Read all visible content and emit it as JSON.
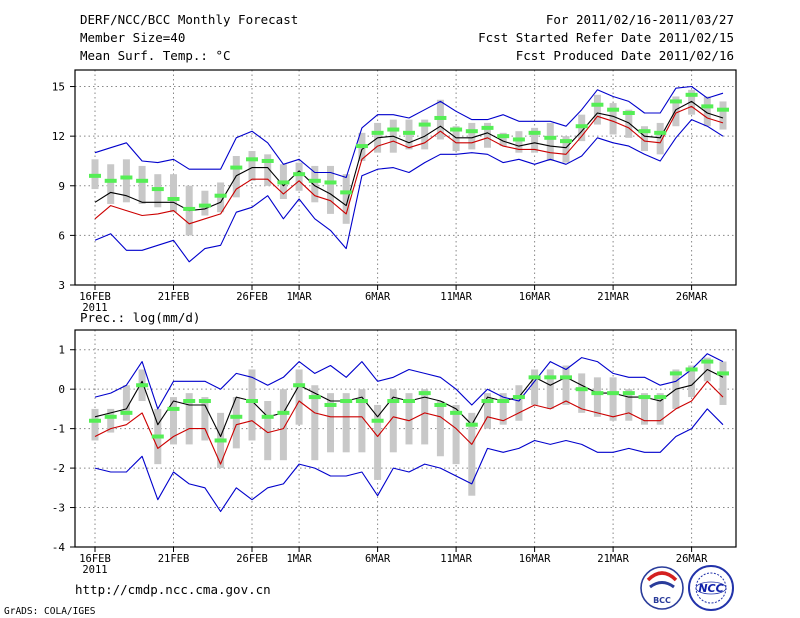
{
  "header": {
    "title": "DERF/NCC/BCC Monthly Forecast",
    "member_size": "Member Size=40",
    "variable": "Mean Surf. Temp.: °C",
    "period": "For 2011/02/16-2011/03/27",
    "start_date": "Fcst Started Refer Date 2011/02/15",
    "produced_date": "Fcst Produced Date 2011/02/16"
  },
  "footer": {
    "url": "http://cmdp.ncc.cma.gov.cn",
    "credit": "GrADS: COLA/IGES",
    "logo_bcc": "BCC",
    "logo_ncc": "NCC"
  },
  "colors": {
    "spread_line": "#0000cc",
    "ensemble_line": "#000000",
    "control_line": "#cc0000",
    "box": "#c8c8c8",
    "median": "#55ee55",
    "grid": "#888888"
  },
  "chart_data": [
    {
      "type": "line",
      "title": "Mean Surf. Temp.: °C",
      "xlabel": "",
      "ylabel": "",
      "ylim": [
        3,
        16
      ],
      "yticks": [
        3,
        6,
        9,
        12,
        15
      ],
      "ytick_labels": [
        "3",
        "6",
        "9",
        "12",
        "15"
      ],
      "grid": true,
      "xlim_days": [
        0,
        39
      ],
      "xticks": [
        {
          "day": 0,
          "label": "16FEB",
          "sublabel": "2011"
        },
        {
          "day": 5,
          "label": "21FEB"
        },
        {
          "day": 10,
          "label": "26FEB"
        },
        {
          "day": 13,
          "label": "1MAR"
        },
        {
          "day": 18,
          "label": "6MAR"
        },
        {
          "day": 23,
          "label": "11MAR"
        },
        {
          "day": 28,
          "label": "16MAR"
        },
        {
          "day": 33,
          "label": "21MAR"
        },
        {
          "day": 38,
          "label": "26MAR"
        }
      ],
      "series": [
        {
          "name": "max",
          "color": "#0000cc",
          "values": [
            11.0,
            11.3,
            11.6,
            10.5,
            10.4,
            10.6,
            10.0,
            10.0,
            10.0,
            11.9,
            12.3,
            11.6,
            10.3,
            10.6,
            9.8,
            9.8,
            9.5,
            12.5,
            13.3,
            13.3,
            13.1,
            13.6,
            14.1,
            13.5,
            13.0,
            13.0,
            13.3,
            12.9,
            12.9,
            12.9,
            12.6,
            13.6,
            14.8,
            14.4,
            14.1,
            13.4,
            13.4,
            14.9,
            15.0,
            14.3,
            14.6
          ]
        },
        {
          "name": "ensemble_mean",
          "color": "#000000",
          "values": [
            8.0,
            8.6,
            8.4,
            8.0,
            8.0,
            8.0,
            7.5,
            7.6,
            8.0,
            9.6,
            10.1,
            10.1,
            9.0,
            9.9,
            9.0,
            8.5,
            7.8,
            11.2,
            11.9,
            12.0,
            11.6,
            12.0,
            12.6,
            11.9,
            11.9,
            12.2,
            11.7,
            11.4,
            11.6,
            11.4,
            11.3,
            12.3,
            13.4,
            13.2,
            12.8,
            12.0,
            11.9,
            13.6,
            14.1,
            13.4,
            13.1
          ]
        },
        {
          "name": "control",
          "color": "#cc0000",
          "values": [
            7.0,
            7.8,
            7.5,
            7.2,
            7.3,
            7.5,
            6.7,
            7.0,
            7.3,
            8.8,
            9.4,
            9.4,
            8.5,
            9.3,
            8.4,
            8.1,
            7.3,
            10.6,
            11.4,
            11.7,
            11.3,
            11.6,
            12.3,
            11.6,
            11.6,
            11.9,
            11.4,
            11.2,
            11.2,
            11.0,
            10.9,
            12.0,
            13.2,
            12.9,
            12.5,
            11.7,
            11.6,
            13.4,
            13.8,
            13.1,
            12.8
          ]
        },
        {
          "name": "min",
          "color": "#0000cc",
          "values": [
            5.7,
            6.1,
            5.1,
            5.1,
            5.4,
            5.7,
            4.4,
            5.2,
            5.4,
            7.4,
            7.7,
            8.4,
            7.0,
            8.2,
            7.0,
            6.3,
            5.2,
            9.6,
            10.0,
            10.1,
            9.8,
            10.4,
            10.9,
            10.9,
            11.0,
            10.9,
            10.4,
            10.6,
            10.3,
            10.6,
            10.3,
            10.8,
            11.9,
            11.6,
            11.4,
            10.9,
            10.5,
            11.9,
            13.0,
            12.6,
            12.0
          ]
        }
      ],
      "boxes": [
        {
          "low": 8.8,
          "high": 10.6,
          "median": 9.6
        },
        {
          "low": 7.9,
          "high": 10.3,
          "median": 9.3
        },
        {
          "low": 8.0,
          "high": 10.6,
          "median": 9.5
        },
        {
          "low": 7.9,
          "high": 10.2,
          "median": 9.3
        },
        {
          "low": 7.7,
          "high": 9.7,
          "median": 8.8
        },
        {
          "low": 7.4,
          "high": 9.7,
          "median": 8.2
        },
        {
          "low": 6.0,
          "high": 9.0,
          "median": 7.6
        },
        {
          "low": 7.2,
          "high": 8.7,
          "median": 7.8
        },
        {
          "low": 7.4,
          "high": 9.2,
          "median": 8.4
        },
        {
          "low": 8.3,
          "high": 10.8,
          "median": 10.1
        },
        {
          "low": 9.3,
          "high": 11.1,
          "median": 10.6
        },
        {
          "low": 9.0,
          "high": 10.9,
          "median": 10.5
        },
        {
          "low": 8.2,
          "high": 10.3,
          "median": 9.2
        },
        {
          "low": 8.7,
          "high": 10.4,
          "median": 9.7
        },
        {
          "low": 8.0,
          "high": 10.2,
          "median": 9.3
        },
        {
          "low": 7.3,
          "high": 10.2,
          "median": 9.2
        },
        {
          "low": 6.7,
          "high": 9.7,
          "median": 8.6
        },
        {
          "low": 10.5,
          "high": 12.2,
          "median": 11.4
        },
        {
          "low": 11.0,
          "high": 12.8,
          "median": 12.2
        },
        {
          "low": 11.0,
          "high": 13.0,
          "median": 12.4
        },
        {
          "low": 11.2,
          "high": 13.0,
          "median": 12.2
        },
        {
          "low": 11.2,
          "high": 13.0,
          "median": 12.7
        },
        {
          "low": 11.8,
          "high": 14.2,
          "median": 13.1
        },
        {
          "low": 11.1,
          "high": 12.6,
          "median": 12.4
        },
        {
          "low": 11.2,
          "high": 12.8,
          "median": 12.3
        },
        {
          "low": 11.3,
          "high": 12.8,
          "median": 12.5
        },
        {
          "low": 11.4,
          "high": 12.2,
          "median": 12.0
        },
        {
          "low": 11.0,
          "high": 12.3,
          "median": 11.8
        },
        {
          "low": 11.0,
          "high": 12.5,
          "median": 12.2
        },
        {
          "low": 10.5,
          "high": 12.8,
          "median": 11.9
        },
        {
          "low": 10.4,
          "high": 12.0,
          "median": 11.7
        },
        {
          "low": 11.7,
          "high": 13.3,
          "median": 12.6
        },
        {
          "low": 12.7,
          "high": 14.5,
          "median": 13.9
        },
        {
          "low": 12.1,
          "high": 14.0,
          "median": 13.6
        },
        {
          "low": 11.9,
          "high": 13.6,
          "median": 13.4
        },
        {
          "low": 11.1,
          "high": 12.6,
          "median": 12.3
        },
        {
          "low": 10.9,
          "high": 12.8,
          "median": 12.2
        },
        {
          "low": 12.6,
          "high": 14.4,
          "median": 14.1
        },
        {
          "low": 13.3,
          "high": 14.8,
          "median": 14.5
        },
        {
          "low": 12.6,
          "high": 14.4,
          "median": 13.8
        },
        {
          "low": 12.4,
          "high": 14.1,
          "median": 13.6
        }
      ]
    },
    {
      "type": "line",
      "title": "Prec.: log(mm/d)",
      "xlabel": "",
      "ylabel": "",
      "ylim": [
        -4,
        1.5
      ],
      "yticks": [
        -4,
        -3,
        -2,
        -1,
        0,
        1
      ],
      "ytick_labels": [
        "-4",
        "-3",
        "-2",
        "-1",
        "0",
        "1"
      ],
      "grid": true,
      "xlim_days": [
        0,
        39
      ],
      "xticks": [
        {
          "day": 0,
          "label": "16FEB",
          "sublabel": "2011"
        },
        {
          "day": 5,
          "label": "21FEB"
        },
        {
          "day": 10,
          "label": "26FEB"
        },
        {
          "day": 13,
          "label": "1MAR"
        },
        {
          "day": 18,
          "label": "6MAR"
        },
        {
          "day": 23,
          "label": "11MAR"
        },
        {
          "day": 28,
          "label": "16MAR"
        },
        {
          "day": 33,
          "label": "21MAR"
        },
        {
          "day": 38,
          "label": "26MAR"
        }
      ],
      "series": [
        {
          "name": "max",
          "color": "#0000cc",
          "values": [
            -0.2,
            -0.1,
            0.1,
            0.7,
            -0.5,
            0.2,
            0.2,
            0.2,
            0.0,
            0.4,
            0.3,
            0.1,
            0.3,
            0.7,
            0.4,
            0.6,
            0.3,
            0.7,
            0.2,
            0.3,
            0.5,
            0.4,
            0.3,
            0.0,
            -0.4,
            0.0,
            -0.2,
            -0.3,
            0.2,
            0.7,
            0.5,
            0.8,
            0.7,
            0.4,
            0.3,
            0.3,
            0.1,
            0.2,
            0.5,
            0.9,
            0.7
          ]
        },
        {
          "name": "ensemble_mean",
          "color": "#000000",
          "values": [
            -0.7,
            -0.6,
            -0.5,
            0.2,
            -0.9,
            -0.3,
            -0.4,
            -0.4,
            -1.2,
            -0.2,
            -0.3,
            -0.7,
            -0.6,
            0.1,
            -0.1,
            -0.3,
            -0.3,
            -0.2,
            -0.7,
            -0.2,
            -0.3,
            -0.2,
            -0.3,
            -0.5,
            -0.9,
            -0.2,
            -0.3,
            -0.2,
            0.3,
            0.1,
            0.3,
            0.1,
            -0.1,
            -0.1,
            -0.2,
            -0.2,
            -0.3,
            0.0,
            0.1,
            0.5,
            0.3
          ]
        },
        {
          "name": "control",
          "color": "#cc0000",
          "values": [
            -1.2,
            -1.0,
            -0.9,
            -0.6,
            -1.5,
            -1.2,
            -1.0,
            -1.0,
            -1.9,
            -0.9,
            -0.8,
            -1.1,
            -1.0,
            -0.3,
            -0.6,
            -0.7,
            -0.7,
            -0.7,
            -1.2,
            -0.7,
            -0.8,
            -0.6,
            -0.7,
            -1.0,
            -1.4,
            -0.7,
            -0.8,
            -0.6,
            -0.4,
            -0.5,
            -0.3,
            -0.5,
            -0.6,
            -0.7,
            -0.6,
            -0.8,
            -0.8,
            -0.5,
            -0.3,
            0.2,
            -0.2
          ]
        },
        {
          "name": "min",
          "color": "#0000cc",
          "values": [
            -2.0,
            -2.1,
            -2.1,
            -1.7,
            -2.8,
            -2.1,
            -2.4,
            -2.5,
            -3.1,
            -2.5,
            -2.8,
            -2.5,
            -2.4,
            -1.9,
            -2.0,
            -2.2,
            -2.2,
            -2.1,
            -2.7,
            -2.0,
            -2.1,
            -1.9,
            -2.0,
            -2.2,
            -2.4,
            -1.5,
            -1.6,
            -1.5,
            -1.3,
            -1.4,
            -1.3,
            -1.4,
            -1.6,
            -1.6,
            -1.5,
            -1.6,
            -1.6,
            -1.2,
            -1.0,
            -0.5,
            -0.9
          ]
        }
      ],
      "boxes": [
        {
          "low": -1.3,
          "high": -0.5,
          "median": -0.8
        },
        {
          "low": -1.1,
          "high": -0.5,
          "median": -0.7
        },
        {
          "low": -0.8,
          "high": 0.1,
          "median": -0.6
        },
        {
          "low": -0.3,
          "high": 0.5,
          "median": 0.1
        },
        {
          "low": -1.9,
          "high": -0.5,
          "median": -1.2
        },
        {
          "low": -1.4,
          "high": -0.2,
          "median": -0.5
        },
        {
          "low": -1.4,
          "high": -0.1,
          "median": -0.3
        },
        {
          "low": -1.3,
          "high": -0.2,
          "median": -0.3
        },
        {
          "low": -2.0,
          "high": -0.6,
          "median": -1.3
        },
        {
          "low": -1.5,
          "high": -0.2,
          "median": -0.7
        },
        {
          "low": -1.3,
          "high": 0.5,
          "median": -0.3
        },
        {
          "low": -1.8,
          "high": -0.3,
          "median": -0.7
        },
        {
          "low": -1.8,
          "high": 0.0,
          "median": -0.6
        },
        {
          "low": -0.9,
          "high": 0.5,
          "median": 0.1
        },
        {
          "low": -1.8,
          "high": 0.1,
          "median": -0.2
        },
        {
          "low": -1.6,
          "high": -0.1,
          "median": -0.4
        },
        {
          "low": -1.6,
          "high": -0.1,
          "median": -0.3
        },
        {
          "low": -1.6,
          "high": 0.0,
          "median": -0.3
        },
        {
          "low": -2.3,
          "high": -0.4,
          "median": -0.8
        },
        {
          "low": -1.6,
          "high": 0.0,
          "median": -0.3
        },
        {
          "low": -1.4,
          "high": -0.1,
          "median": -0.3
        },
        {
          "low": -1.4,
          "high": 0.0,
          "median": -0.1
        },
        {
          "low": -1.7,
          "high": -0.3,
          "median": -0.4
        },
        {
          "low": -1.9,
          "high": -0.4,
          "median": -0.6
        },
        {
          "low": -2.7,
          "high": -0.6,
          "median": -0.9
        },
        {
          "low": -1.0,
          "high": -0.1,
          "median": -0.3
        },
        {
          "low": -0.9,
          "high": -0.1,
          "median": -0.3
        },
        {
          "low": -0.8,
          "high": 0.1,
          "median": -0.2
        },
        {
          "low": -0.4,
          "high": 0.5,
          "median": 0.3
        },
        {
          "low": -0.5,
          "high": 0.5,
          "median": 0.3
        },
        {
          "low": -0.4,
          "high": 0.6,
          "median": 0.3
        },
        {
          "low": -0.6,
          "high": 0.4,
          "median": 0.0
        },
        {
          "low": -0.7,
          "high": 0.3,
          "median": -0.1
        },
        {
          "low": -0.8,
          "high": 0.3,
          "median": -0.1
        },
        {
          "low": -0.8,
          "high": 0.0,
          "median": -0.1
        },
        {
          "low": -0.9,
          "high": -0.1,
          "median": -0.2
        },
        {
          "low": -0.9,
          "high": -0.1,
          "median": -0.2
        },
        {
          "low": -0.5,
          "high": 0.5,
          "median": 0.4
        },
        {
          "low": -0.2,
          "high": 0.6,
          "median": 0.5
        },
        {
          "low": 0.2,
          "high": 0.8,
          "median": 0.7
        },
        {
          "low": -0.4,
          "high": 0.7,
          "median": 0.4
        }
      ]
    }
  ]
}
